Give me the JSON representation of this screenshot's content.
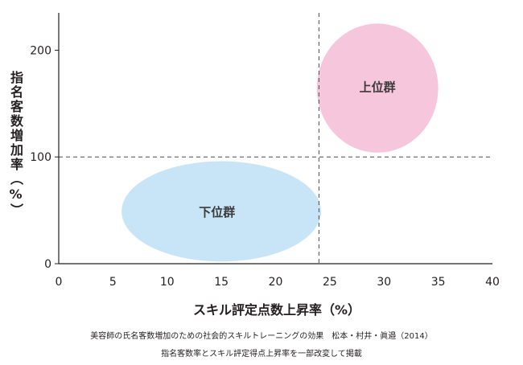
{
  "chart_data": {
    "type": "scatter",
    "xlabel": "スキル評定点数上昇率（%）",
    "ylabel": "指名客数増加率（%）",
    "xlim": [
      0,
      40
    ],
    "ylim": [
      0,
      235
    ],
    "x_ticks": [
      "0",
      "5",
      "10",
      "15",
      "20",
      "25",
      "30",
      "35",
      "40"
    ],
    "y_ticks": [
      "0",
      "100",
      "200"
    ],
    "reference_lines": {
      "x": 24,
      "y": 100,
      "style": "dashed"
    },
    "groups": [
      {
        "label": "下位群",
        "center": [
          14.6,
          49
        ],
        "x_range": [
          5.8,
          24.2
        ],
        "y_range": [
          2,
          96
        ],
        "color": "#c7e5f6"
      },
      {
        "label": "上位群",
        "center": [
          29.4,
          166
        ],
        "x_range": [
          23.8,
          35
        ],
        "y_range": [
          104,
          225
        ],
        "color": "#f6c6dc"
      }
    ],
    "grid": false,
    "legend": "none"
  },
  "caption": {
    "line1": "美容師の氏名客数増加のための社会的スキルトレーニングの効果　松本・村井・眞邉（2014）",
    "line2": "指名客数率とスキル評定得点上昇率を一部改変して掲載"
  }
}
